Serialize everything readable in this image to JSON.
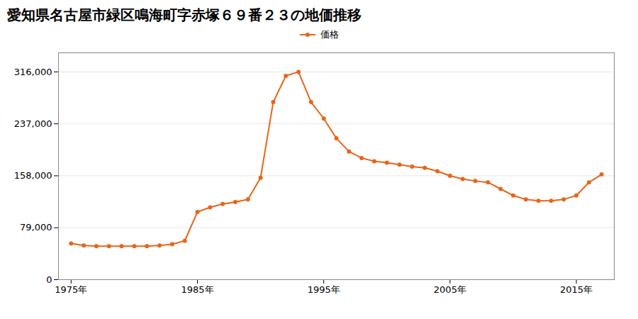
{
  "chart_data": {
    "type": "line",
    "title": "愛知県名古屋市緑区鳴海町字赤塚６９番２３の地価推移",
    "x": [
      1975,
      1976,
      1977,
      1978,
      1979,
      1980,
      1981,
      1982,
      1983,
      1984,
      1985,
      1986,
      1987,
      1988,
      1989,
      1990,
      1991,
      1992,
      1993,
      1994,
      1995,
      1996,
      1997,
      1998,
      1999,
      2000,
      2001,
      2002,
      2003,
      2004,
      2005,
      2006,
      2007,
      2008,
      2009,
      2010,
      2011,
      2012,
      2013,
      2014,
      2015,
      2016,
      2017
    ],
    "series": [
      {
        "name": "価格",
        "color": "#e8651a",
        "marker": "circle",
        "values": [
          55000,
          52000,
          51000,
          51000,
          51000,
          51000,
          51000,
          52000,
          54000,
          59000,
          103000,
          110000,
          115000,
          118000,
          122000,
          155000,
          270000,
          310000,
          316000,
          270000,
          245000,
          215000,
          195000,
          185000,
          180000,
          178000,
          175000,
          172000,
          170000,
          165000,
          158000,
          153000,
          150000,
          148000,
          138000,
          128000,
          122000,
          120000,
          120000,
          122000,
          128000,
          148000,
          160000
        ]
      }
    ],
    "xlim": [
      1974,
      2018
    ],
    "xticks": [
      {
        "value": 1975,
        "label": "1975年"
      },
      {
        "value": 1985,
        "label": "1985年"
      },
      {
        "value": 1995,
        "label": "1995年"
      },
      {
        "value": 2005,
        "label": "2005年"
      },
      {
        "value": 2015,
        "label": "2015年"
      }
    ],
    "ylim": [
      0,
      345000
    ],
    "yticks": [
      0,
      {
        "value": 79000,
        "label": "79,000"
      },
      {
        "value": 158000,
        "label": "158,000"
      },
      {
        "value": 237000,
        "label": "237,000"
      },
      {
        "value": 316000,
        "label": "316,000"
      }
    ],
    "grid": true,
    "legend": "top"
  }
}
